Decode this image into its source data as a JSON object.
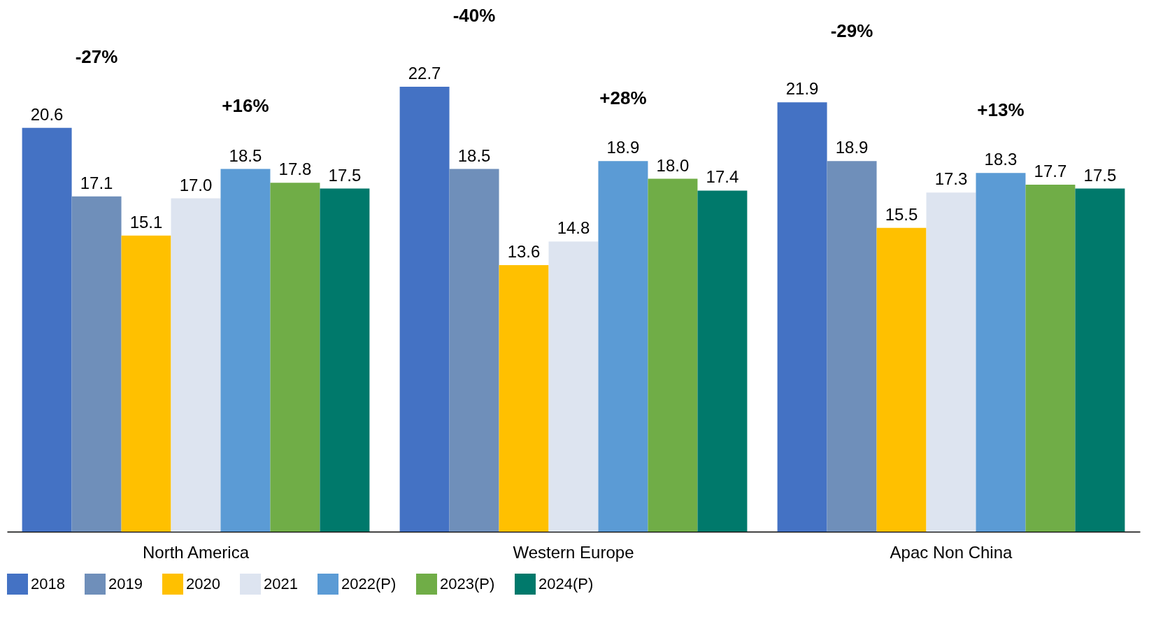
{
  "chart_data": {
    "type": "bar",
    "categories": [
      "North America",
      "Western Europe",
      "Apac Non China"
    ],
    "series": [
      {
        "name": "2018",
        "color": "#4472c4",
        "values": [
          20.6,
          22.7,
          21.9
        ],
        "value_labels": [
          "20.6",
          "22.7",
          "21.9"
        ]
      },
      {
        "name": "2019",
        "color": "#6f8fba",
        "values": [
          17.1,
          18.5,
          18.9
        ],
        "value_labels": [
          "17.1",
          "18.5",
          "18.9"
        ]
      },
      {
        "name": "2020",
        "color": "#ffc000",
        "values": [
          15.1,
          13.6,
          15.5
        ],
        "value_labels": [
          "15.1",
          "13.6",
          "15.5"
        ]
      },
      {
        "name": "2021",
        "color": "#dde4f0",
        "values": [
          17.0,
          14.8,
          17.3
        ],
        "value_labels": [
          "17.0",
          "14.8",
          "17.3"
        ]
      },
      {
        "name": "2022(P)",
        "color": "#5b9bd5",
        "values": [
          18.5,
          18.9,
          18.3
        ],
        "value_labels": [
          "18.5",
          "18.9",
          "18.3"
        ]
      },
      {
        "name": "2023(P)",
        "color": "#70ad47",
        "values": [
          17.8,
          18.0,
          17.7
        ],
        "value_labels": [
          "17.8",
          "18.0",
          "17.7"
        ]
      },
      {
        "name": "2024(P)",
        "color": "#00796b",
        "values": [
          17.5,
          17.4,
          17.5
        ],
        "value_labels": [
          "17.5",
          "17.4",
          "17.5"
        ]
      }
    ],
    "annotations": [
      "-27%",
      "+16%",
      "-40%",
      "+28%",
      "-29%",
      "+13%"
    ],
    "legend": "bottom",
    "grid": false
  }
}
